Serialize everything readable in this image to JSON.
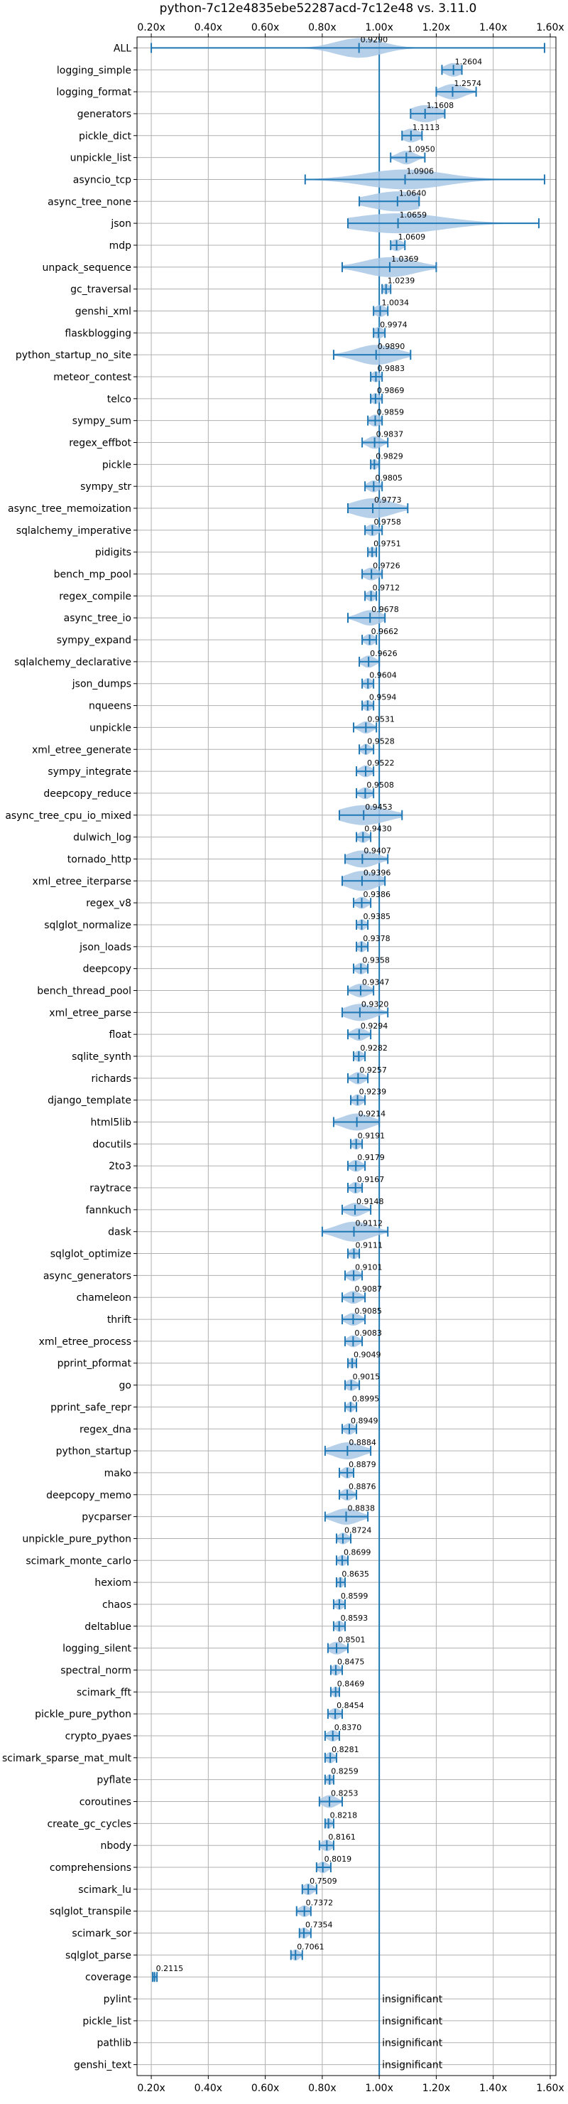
{
  "chart_data": {
    "type": "violin",
    "title": "python-7c12e4835ebe52287acd-7c12e48 vs. 3.11.0",
    "xlim": [
      0.15,
      1.62
    ],
    "xticks": [
      {
        "value": 0.2,
        "label": "0.20x"
      },
      {
        "value": 0.4,
        "label": "0.40x"
      },
      {
        "value": 0.6,
        "label": "0.60x"
      },
      {
        "value": 0.8,
        "label": "0.80x"
      },
      {
        "value": 1.0,
        "label": "1.00x"
      },
      {
        "value": 1.2,
        "label": "1.20x"
      },
      {
        "value": 1.4,
        "label": "1.40x"
      },
      {
        "value": 1.6,
        "label": "1.60x"
      }
    ],
    "xticks_top_and_bottom": true,
    "grid": true,
    "reference_line": 1.0,
    "colors": {
      "violin": "#a9c8e6",
      "line": "#1f77b4",
      "reference": "#1f77b4",
      "grid": "#b0b0b0"
    },
    "insignificant_label": "insignificant",
    "benchmarks": [
      {
        "name": "ALL",
        "median": 0.929,
        "label": "0.9290",
        "min": 0.2,
        "max": 1.58,
        "spread": 0.08
      },
      {
        "name": "logging_simple",
        "median": 1.2604,
        "label": "1.2604",
        "min": 1.22,
        "max": 1.29,
        "spread": 0.03
      },
      {
        "name": "logging_format",
        "median": 1.2574,
        "label": "1.2574",
        "min": 1.2,
        "max": 1.34,
        "spread": 0.04
      },
      {
        "name": "generators",
        "median": 1.1608,
        "label": "1.1608",
        "min": 1.11,
        "max": 1.23,
        "spread": 0.05
      },
      {
        "name": "pickle_dict",
        "median": 1.1113,
        "label": "1.1113",
        "min": 1.08,
        "max": 1.15,
        "spread": 0.03
      },
      {
        "name": "unpickle_list",
        "median": 1.095,
        "label": "1.0950",
        "min": 1.04,
        "max": 1.16,
        "spread": 0.03
      },
      {
        "name": "asyncio_tcp",
        "median": 1.0906,
        "label": "1.0906",
        "min": 0.74,
        "max": 1.58,
        "spread": 0.14
      },
      {
        "name": "async_tree_none",
        "median": 1.064,
        "label": "1.0640",
        "min": 0.93,
        "max": 1.14,
        "spread": 0.1
      },
      {
        "name": "json",
        "median": 1.0659,
        "label": "1.0659",
        "min": 0.89,
        "max": 1.56,
        "spread": 0.16
      },
      {
        "name": "mdp",
        "median": 1.0609,
        "label": "1.0609",
        "min": 1.04,
        "max": 1.09,
        "spread": 0.02
      },
      {
        "name": "unpack_sequence",
        "median": 1.0369,
        "label": "1.0369",
        "min": 0.87,
        "max": 1.2,
        "spread": 0.09
      },
      {
        "name": "gc_traversal",
        "median": 1.0239,
        "label": "1.0239",
        "min": 1.01,
        "max": 1.04,
        "spread": 0.012
      },
      {
        "name": "genshi_xml",
        "median": 1.0034,
        "label": "1.0034",
        "min": 0.98,
        "max": 1.03,
        "spread": 0.02
      },
      {
        "name": "flaskblogging",
        "median": 0.9974,
        "label": "0.9974",
        "min": 0.98,
        "max": 1.02,
        "spread": 0.018
      },
      {
        "name": "python_startup_no_site",
        "median": 0.989,
        "label": "0.9890",
        "min": 0.84,
        "max": 1.11,
        "spread": 0.07
      },
      {
        "name": "meteor_contest",
        "median": 0.9883,
        "label": "0.9883",
        "min": 0.97,
        "max": 1.01,
        "spread": 0.015
      },
      {
        "name": "telco",
        "median": 0.9869,
        "label": "0.9869",
        "min": 0.97,
        "max": 1.01,
        "spread": 0.015
      },
      {
        "name": "sympy_sum",
        "median": 0.9859,
        "label": "0.9859",
        "min": 0.96,
        "max": 1.01,
        "spread": 0.02
      },
      {
        "name": "regex_effbot",
        "median": 0.9837,
        "label": "0.9837",
        "min": 0.94,
        "max": 1.03,
        "spread": 0.025
      },
      {
        "name": "pickle",
        "median": 0.9829,
        "label": "0.9829",
        "min": 0.97,
        "max": 1.0,
        "spread": 0.012
      },
      {
        "name": "sympy_str",
        "median": 0.9805,
        "label": "0.9805",
        "min": 0.95,
        "max": 1.01,
        "spread": 0.02
      },
      {
        "name": "async_tree_memoization",
        "median": 0.9773,
        "label": "0.9773",
        "min": 0.89,
        "max": 1.1,
        "spread": 0.07
      },
      {
        "name": "sqlalchemy_imperative",
        "median": 0.9758,
        "label": "0.9758",
        "min": 0.95,
        "max": 1.01,
        "spread": 0.02
      },
      {
        "name": "pidigits",
        "median": 0.9751,
        "label": "0.9751",
        "min": 0.96,
        "max": 0.99,
        "spread": 0.012
      },
      {
        "name": "bench_mp_pool",
        "median": 0.9726,
        "label": "0.9726",
        "min": 0.94,
        "max": 1.01,
        "spread": 0.025
      },
      {
        "name": "regex_compile",
        "median": 0.9712,
        "label": "0.9712",
        "min": 0.95,
        "max": 0.99,
        "spread": 0.015
      },
      {
        "name": "async_tree_io",
        "median": 0.9678,
        "label": "0.9678",
        "min": 0.89,
        "max": 1.02,
        "spread": 0.04
      },
      {
        "name": "sympy_expand",
        "median": 0.9662,
        "label": "0.9662",
        "min": 0.94,
        "max": 0.99,
        "spread": 0.018
      },
      {
        "name": "sqlalchemy_declarative",
        "median": 0.9626,
        "label": "0.9626",
        "min": 0.93,
        "max": 1.0,
        "spread": 0.022
      },
      {
        "name": "json_dumps",
        "median": 0.9604,
        "label": "0.9604",
        "min": 0.94,
        "max": 0.98,
        "spread": 0.015
      },
      {
        "name": "nqueens",
        "median": 0.9594,
        "label": "0.9594",
        "min": 0.94,
        "max": 0.98,
        "spread": 0.015
      },
      {
        "name": "unpickle",
        "median": 0.9531,
        "label": "0.9531",
        "min": 0.91,
        "max": 0.99,
        "spread": 0.022
      },
      {
        "name": "xml_etree_generate",
        "median": 0.9528,
        "label": "0.9528",
        "min": 0.93,
        "max": 0.98,
        "spread": 0.015
      },
      {
        "name": "sympy_integrate",
        "median": 0.9522,
        "label": "0.9522",
        "min": 0.92,
        "max": 0.98,
        "spread": 0.02
      },
      {
        "name": "deepcopy_reduce",
        "median": 0.9508,
        "label": "0.9508",
        "min": 0.92,
        "max": 0.98,
        "spread": 0.02
      },
      {
        "name": "async_tree_cpu_io_mixed",
        "median": 0.9453,
        "label": "0.9453",
        "min": 0.86,
        "max": 1.08,
        "spread": 0.08
      },
      {
        "name": "dulwich_log",
        "median": 0.943,
        "label": "0.9430",
        "min": 0.92,
        "max": 0.97,
        "spread": 0.018
      },
      {
        "name": "tornado_http",
        "median": 0.9407,
        "label": "0.9407",
        "min": 0.88,
        "max": 1.03,
        "spread": 0.05
      },
      {
        "name": "xml_etree_iterparse",
        "median": 0.9396,
        "label": "0.9396",
        "min": 0.87,
        "max": 1.02,
        "spread": 0.055
      },
      {
        "name": "regex_v8",
        "median": 0.9386,
        "label": "0.9386",
        "min": 0.91,
        "max": 0.97,
        "spread": 0.02
      },
      {
        "name": "sqlglot_normalize",
        "median": 0.9385,
        "label": "0.9385",
        "min": 0.92,
        "max": 0.96,
        "spread": 0.015
      },
      {
        "name": "json_loads",
        "median": 0.9378,
        "label": "0.9378",
        "min": 0.92,
        "max": 0.96,
        "spread": 0.015
      },
      {
        "name": "deepcopy",
        "median": 0.9358,
        "label": "0.9358",
        "min": 0.91,
        "max": 0.96,
        "spread": 0.018
      },
      {
        "name": "bench_thread_pool",
        "median": 0.9347,
        "label": "0.9347",
        "min": 0.89,
        "max": 0.98,
        "spread": 0.03
      },
      {
        "name": "xml_etree_parse",
        "median": 0.932,
        "label": "0.9320",
        "min": 0.87,
        "max": 1.03,
        "spread": 0.05
      },
      {
        "name": "float",
        "median": 0.9294,
        "label": "0.9294",
        "min": 0.89,
        "max": 0.97,
        "spread": 0.025
      },
      {
        "name": "sqlite_synth",
        "median": 0.9282,
        "label": "0.9282",
        "min": 0.91,
        "max": 0.95,
        "spread": 0.015
      },
      {
        "name": "richards",
        "median": 0.9257,
        "label": "0.9257",
        "min": 0.89,
        "max": 0.96,
        "spread": 0.022
      },
      {
        "name": "django_template",
        "median": 0.9239,
        "label": "0.9239",
        "min": 0.9,
        "max": 0.95,
        "spread": 0.018
      },
      {
        "name": "html5lib",
        "median": 0.9214,
        "label": "0.9214",
        "min": 0.84,
        "max": 1.0,
        "spread": 0.05
      },
      {
        "name": "docutils",
        "median": 0.9191,
        "label": "0.9191",
        "min": 0.9,
        "max": 0.94,
        "spread": 0.015
      },
      {
        "name": "2to3",
        "median": 0.9179,
        "label": "0.9179",
        "min": 0.89,
        "max": 0.95,
        "spread": 0.02
      },
      {
        "name": "raytrace",
        "median": 0.9167,
        "label": "0.9167",
        "min": 0.89,
        "max": 0.94,
        "spread": 0.018
      },
      {
        "name": "fannkuch",
        "median": 0.9148,
        "label": "0.9148",
        "min": 0.87,
        "max": 0.97,
        "spread": 0.03
      },
      {
        "name": "dask",
        "median": 0.9112,
        "label": "0.9112",
        "min": 0.8,
        "max": 1.03,
        "spread": 0.06
      },
      {
        "name": "sqlglot_optimize",
        "median": 0.9111,
        "label": "0.9111",
        "min": 0.89,
        "max": 0.93,
        "spread": 0.015
      },
      {
        "name": "async_generators",
        "median": 0.9101,
        "label": "0.9101",
        "min": 0.88,
        "max": 0.94,
        "spread": 0.02
      },
      {
        "name": "chameleon",
        "median": 0.9087,
        "label": "0.9087",
        "min": 0.87,
        "max": 0.95,
        "spread": 0.025
      },
      {
        "name": "thrift",
        "median": 0.9085,
        "label": "0.9085",
        "min": 0.87,
        "max": 0.95,
        "spread": 0.025
      },
      {
        "name": "xml_etree_process",
        "median": 0.9083,
        "label": "0.9083",
        "min": 0.88,
        "max": 0.94,
        "spread": 0.02
      },
      {
        "name": "pprint_pformat",
        "median": 0.9049,
        "label": "0.9049",
        "min": 0.89,
        "max": 0.92,
        "spread": 0.012
      },
      {
        "name": "go",
        "median": 0.9015,
        "label": "0.9015",
        "min": 0.88,
        "max": 0.93,
        "spread": 0.018
      },
      {
        "name": "pprint_safe_repr",
        "median": 0.8995,
        "label": "0.8995",
        "min": 0.88,
        "max": 0.92,
        "spread": 0.012
      },
      {
        "name": "regex_dna",
        "median": 0.8949,
        "label": "0.8949",
        "min": 0.87,
        "max": 0.92,
        "spread": 0.018
      },
      {
        "name": "python_startup",
        "median": 0.8884,
        "label": "0.8884",
        "min": 0.81,
        "max": 0.97,
        "spread": 0.05
      },
      {
        "name": "mako",
        "median": 0.8879,
        "label": "0.8879",
        "min": 0.86,
        "max": 0.91,
        "spread": 0.018
      },
      {
        "name": "deepcopy_memo",
        "median": 0.8876,
        "label": "0.8876",
        "min": 0.86,
        "max": 0.92,
        "spread": 0.02
      },
      {
        "name": "pycparser",
        "median": 0.8838,
        "label": "0.8838",
        "min": 0.81,
        "max": 0.96,
        "spread": 0.045
      },
      {
        "name": "unpickle_pure_python",
        "median": 0.8724,
        "label": "0.8724",
        "min": 0.85,
        "max": 0.9,
        "spread": 0.018
      },
      {
        "name": "scimark_monte_carlo",
        "median": 0.8699,
        "label": "0.8699",
        "min": 0.85,
        "max": 0.89,
        "spread": 0.015
      },
      {
        "name": "hexiom",
        "median": 0.8635,
        "label": "0.8635",
        "min": 0.85,
        "max": 0.88,
        "spread": 0.012
      },
      {
        "name": "chaos",
        "median": 0.8599,
        "label": "0.8599",
        "min": 0.84,
        "max": 0.88,
        "spread": 0.015
      },
      {
        "name": "deltablue",
        "median": 0.8593,
        "label": "0.8593",
        "min": 0.84,
        "max": 0.88,
        "spread": 0.015
      },
      {
        "name": "logging_silent",
        "median": 0.8501,
        "label": "0.8501",
        "min": 0.82,
        "max": 0.89,
        "spread": 0.025
      },
      {
        "name": "spectral_norm",
        "median": 0.8475,
        "label": "0.8475",
        "min": 0.83,
        "max": 0.87,
        "spread": 0.015
      },
      {
        "name": "scimark_fft",
        "median": 0.8469,
        "label": "0.8469",
        "min": 0.83,
        "max": 0.86,
        "spread": 0.012
      },
      {
        "name": "pickle_pure_python",
        "median": 0.8454,
        "label": "0.8454",
        "min": 0.82,
        "max": 0.87,
        "spread": 0.018
      },
      {
        "name": "crypto_pyaes",
        "median": 0.837,
        "label": "0.8370",
        "min": 0.81,
        "max": 0.86,
        "spread": 0.018
      },
      {
        "name": "scimark_sparse_mat_mult",
        "median": 0.8281,
        "label": "0.8281",
        "min": 0.81,
        "max": 0.85,
        "spread": 0.015
      },
      {
        "name": "pyflate",
        "median": 0.8259,
        "label": "0.8259",
        "min": 0.81,
        "max": 0.84,
        "spread": 0.012
      },
      {
        "name": "coroutines",
        "median": 0.8253,
        "label": "0.8253",
        "min": 0.79,
        "max": 0.87,
        "spread": 0.025
      },
      {
        "name": "create_gc_cycles",
        "median": 0.8218,
        "label": "0.8218",
        "min": 0.81,
        "max": 0.84,
        "spread": 0.012
      },
      {
        "name": "nbody",
        "median": 0.8161,
        "label": "0.8161",
        "min": 0.79,
        "max": 0.84,
        "spread": 0.018
      },
      {
        "name": "comprehensions",
        "median": 0.8019,
        "label": "0.8019",
        "min": 0.78,
        "max": 0.83,
        "spread": 0.018
      },
      {
        "name": "scimark_lu",
        "median": 0.7509,
        "label": "0.7509",
        "min": 0.73,
        "max": 0.78,
        "spread": 0.018
      },
      {
        "name": "sqlglot_transpile",
        "median": 0.7372,
        "label": "0.7372",
        "min": 0.71,
        "max": 0.76,
        "spread": 0.018
      },
      {
        "name": "scimark_sor",
        "median": 0.7354,
        "label": "0.7354",
        "min": 0.72,
        "max": 0.76,
        "spread": 0.015
      },
      {
        "name": "sqlglot_parse",
        "median": 0.7061,
        "label": "0.7061",
        "min": 0.69,
        "max": 0.73,
        "spread": 0.015
      },
      {
        "name": "coverage",
        "median": 0.2115,
        "label": "0.2115",
        "min": 0.205,
        "max": 0.22,
        "spread": 0.005
      },
      {
        "name": "pylint",
        "insignificant": true
      },
      {
        "name": "pickle_list",
        "insignificant": true
      },
      {
        "name": "pathlib",
        "insignificant": true
      },
      {
        "name": "genshi_text",
        "insignificant": true
      }
    ]
  }
}
